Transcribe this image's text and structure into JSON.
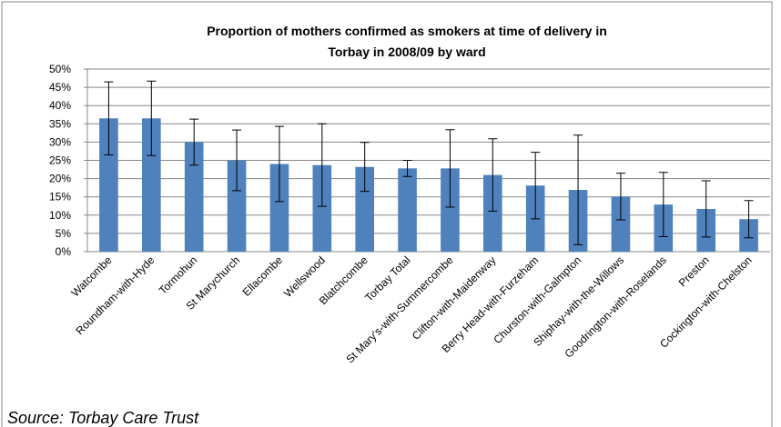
{
  "chart_data": {
    "type": "bar",
    "title": [
      "Proportion of mothers confirmed as smokers at time of delivery in",
      "Torbay in 2008/09 by ward"
    ],
    "source": "Source: Torbay Care Trust",
    "categories": [
      "Watcombe",
      "Roundham-with-Hyde",
      "Tormohun",
      "St Marychurch",
      "Ellacombe",
      "Wellswood",
      "Blatchcombe",
      "Torbay Total",
      "St Mary's-with-Summercombe",
      "Clifton-with-Maidenway",
      "Berry Head-with-Furzeham",
      "Churston-with-Galmpton",
      "Shiphay-with-the-Willows",
      "Goodrington-with-Roselands",
      "Preston",
      "Cockington-with-Chelston"
    ],
    "values": [
      36.5,
      36.5,
      30,
      25,
      24,
      23.7,
      23.2,
      22.8,
      22.8,
      21,
      18.1,
      16.9,
      15.1,
      12.9,
      11.7,
      8.9
    ],
    "errors": [
      10,
      10.2,
      6.3,
      8.3,
      10.3,
      11.3,
      6.7,
      2.2,
      10.6,
      9.9,
      9.1,
      15,
      6.4,
      8.8,
      7.7,
      5.1
    ],
    "color": "#4f81bd",
    "ylim": [
      0,
      50
    ],
    "yticks": [
      {
        "value": 0,
        "label": "0%"
      },
      {
        "value": 5,
        "label": "5%"
      },
      {
        "value": 10,
        "label": "10%"
      },
      {
        "value": 15,
        "label": "15%"
      },
      {
        "value": 20,
        "label": "20%"
      },
      {
        "value": 25,
        "label": "25%"
      },
      {
        "value": 30,
        "label": "30%"
      },
      {
        "value": 35,
        "label": "35%"
      },
      {
        "value": 40,
        "label": "40%"
      },
      {
        "value": 45,
        "label": "45%"
      },
      {
        "value": 50,
        "label": "50%"
      }
    ],
    "grid": true
  }
}
